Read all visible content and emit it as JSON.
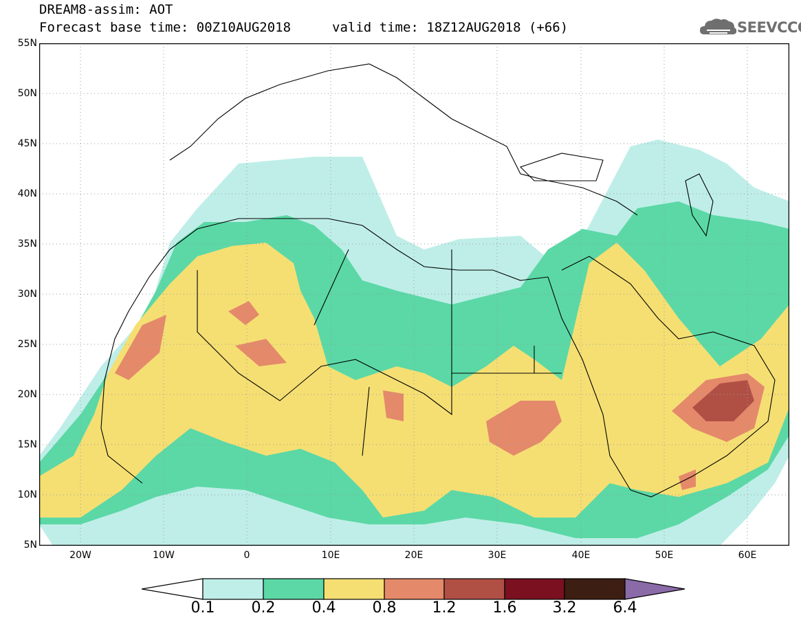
{
  "header": {
    "line1": "DREAM8-assim: AOT",
    "forecast_base": "Forecast base time: 00Z10AUG2018",
    "valid_time": "valid time: 18Z12AUG2018 (+66)"
  },
  "logo": {
    "text": "SEEVCCC",
    "icon": "cloud-icon",
    "color": "#6f6f6f"
  },
  "axes": {
    "lat_ticks": [
      "55N",
      "50N",
      "45N",
      "40N",
      "35N",
      "30N",
      "25N",
      "20N",
      "15N",
      "10N",
      "5N"
    ],
    "lon_ticks": [
      "20W",
      "10W",
      "0",
      "10E",
      "20E",
      "30E",
      "40E",
      "50E",
      "60E"
    ]
  },
  "legend": {
    "levels": [
      "0.1",
      "0.2",
      "0.4",
      "0.8",
      "1.2",
      "1.6",
      "3.2",
      "6.4"
    ],
    "colors": [
      "#ffffff",
      "#bfeee8",
      "#5bd8a6",
      "#f5df73",
      "#e4896a",
      "#b05045",
      "#7a1020",
      "#3c1e12",
      "#8b6aa8"
    ]
  }
}
